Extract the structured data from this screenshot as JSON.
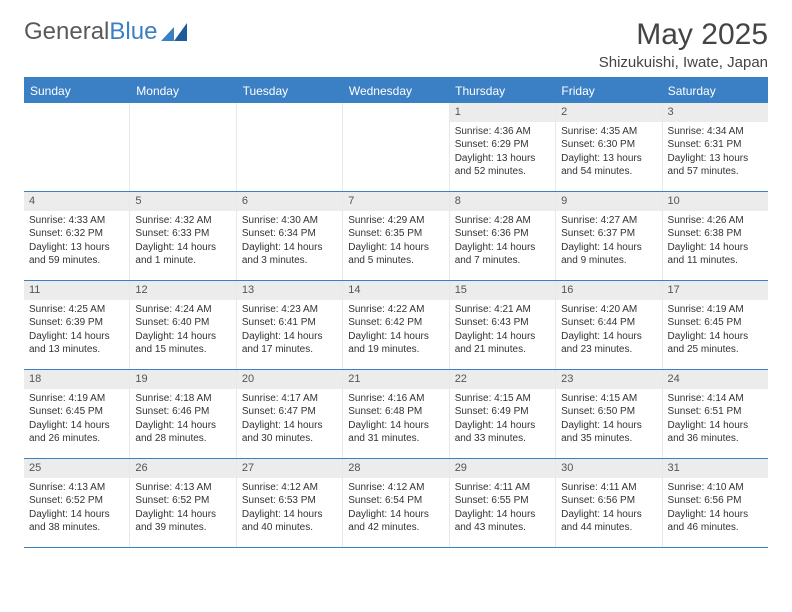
{
  "logo": {
    "text_gray": "General",
    "text_blue": "Blue"
  },
  "title": "May 2025",
  "location": "Shizukuishi, Iwate, Japan",
  "colors": {
    "header_bg": "#3b7fc4",
    "header_text": "#ffffff",
    "daynum_bg": "#ececec",
    "daynum_text": "#555555",
    "body_text": "#333333",
    "border": "#3b7fc4",
    "cell_border": "#e8e8e8"
  },
  "typography": {
    "title_fontsize": 30,
    "location_fontsize": 15,
    "header_fontsize": 12,
    "cell_fontsize": 10
  },
  "day_headers": [
    "Sunday",
    "Monday",
    "Tuesday",
    "Wednesday",
    "Thursday",
    "Friday",
    "Saturday"
  ],
  "weeks": [
    [
      {
        "n": "",
        "sunrise": "",
        "sunset": "",
        "daylight1": "",
        "daylight2": "",
        "empty": true
      },
      {
        "n": "",
        "sunrise": "",
        "sunset": "",
        "daylight1": "",
        "daylight2": "",
        "empty": true
      },
      {
        "n": "",
        "sunrise": "",
        "sunset": "",
        "daylight1": "",
        "daylight2": "",
        "empty": true
      },
      {
        "n": "",
        "sunrise": "",
        "sunset": "",
        "daylight1": "",
        "daylight2": "",
        "empty": true
      },
      {
        "n": "1",
        "sunrise": "Sunrise: 4:36 AM",
        "sunset": "Sunset: 6:29 PM",
        "daylight1": "Daylight: 13 hours",
        "daylight2": "and 52 minutes."
      },
      {
        "n": "2",
        "sunrise": "Sunrise: 4:35 AM",
        "sunset": "Sunset: 6:30 PM",
        "daylight1": "Daylight: 13 hours",
        "daylight2": "and 54 minutes."
      },
      {
        "n": "3",
        "sunrise": "Sunrise: 4:34 AM",
        "sunset": "Sunset: 6:31 PM",
        "daylight1": "Daylight: 13 hours",
        "daylight2": "and 57 minutes."
      }
    ],
    [
      {
        "n": "4",
        "sunrise": "Sunrise: 4:33 AM",
        "sunset": "Sunset: 6:32 PM",
        "daylight1": "Daylight: 13 hours",
        "daylight2": "and 59 minutes."
      },
      {
        "n": "5",
        "sunrise": "Sunrise: 4:32 AM",
        "sunset": "Sunset: 6:33 PM",
        "daylight1": "Daylight: 14 hours",
        "daylight2": "and 1 minute."
      },
      {
        "n": "6",
        "sunrise": "Sunrise: 4:30 AM",
        "sunset": "Sunset: 6:34 PM",
        "daylight1": "Daylight: 14 hours",
        "daylight2": "and 3 minutes."
      },
      {
        "n": "7",
        "sunrise": "Sunrise: 4:29 AM",
        "sunset": "Sunset: 6:35 PM",
        "daylight1": "Daylight: 14 hours",
        "daylight2": "and 5 minutes."
      },
      {
        "n": "8",
        "sunrise": "Sunrise: 4:28 AM",
        "sunset": "Sunset: 6:36 PM",
        "daylight1": "Daylight: 14 hours",
        "daylight2": "and 7 minutes."
      },
      {
        "n": "9",
        "sunrise": "Sunrise: 4:27 AM",
        "sunset": "Sunset: 6:37 PM",
        "daylight1": "Daylight: 14 hours",
        "daylight2": "and 9 minutes."
      },
      {
        "n": "10",
        "sunrise": "Sunrise: 4:26 AM",
        "sunset": "Sunset: 6:38 PM",
        "daylight1": "Daylight: 14 hours",
        "daylight2": "and 11 minutes."
      }
    ],
    [
      {
        "n": "11",
        "sunrise": "Sunrise: 4:25 AM",
        "sunset": "Sunset: 6:39 PM",
        "daylight1": "Daylight: 14 hours",
        "daylight2": "and 13 minutes."
      },
      {
        "n": "12",
        "sunrise": "Sunrise: 4:24 AM",
        "sunset": "Sunset: 6:40 PM",
        "daylight1": "Daylight: 14 hours",
        "daylight2": "and 15 minutes."
      },
      {
        "n": "13",
        "sunrise": "Sunrise: 4:23 AM",
        "sunset": "Sunset: 6:41 PM",
        "daylight1": "Daylight: 14 hours",
        "daylight2": "and 17 minutes."
      },
      {
        "n": "14",
        "sunrise": "Sunrise: 4:22 AM",
        "sunset": "Sunset: 6:42 PM",
        "daylight1": "Daylight: 14 hours",
        "daylight2": "and 19 minutes."
      },
      {
        "n": "15",
        "sunrise": "Sunrise: 4:21 AM",
        "sunset": "Sunset: 6:43 PM",
        "daylight1": "Daylight: 14 hours",
        "daylight2": "and 21 minutes."
      },
      {
        "n": "16",
        "sunrise": "Sunrise: 4:20 AM",
        "sunset": "Sunset: 6:44 PM",
        "daylight1": "Daylight: 14 hours",
        "daylight2": "and 23 minutes."
      },
      {
        "n": "17",
        "sunrise": "Sunrise: 4:19 AM",
        "sunset": "Sunset: 6:45 PM",
        "daylight1": "Daylight: 14 hours",
        "daylight2": "and 25 minutes."
      }
    ],
    [
      {
        "n": "18",
        "sunrise": "Sunrise: 4:19 AM",
        "sunset": "Sunset: 6:45 PM",
        "daylight1": "Daylight: 14 hours",
        "daylight2": "and 26 minutes."
      },
      {
        "n": "19",
        "sunrise": "Sunrise: 4:18 AM",
        "sunset": "Sunset: 6:46 PM",
        "daylight1": "Daylight: 14 hours",
        "daylight2": "and 28 minutes."
      },
      {
        "n": "20",
        "sunrise": "Sunrise: 4:17 AM",
        "sunset": "Sunset: 6:47 PM",
        "daylight1": "Daylight: 14 hours",
        "daylight2": "and 30 minutes."
      },
      {
        "n": "21",
        "sunrise": "Sunrise: 4:16 AM",
        "sunset": "Sunset: 6:48 PM",
        "daylight1": "Daylight: 14 hours",
        "daylight2": "and 31 minutes."
      },
      {
        "n": "22",
        "sunrise": "Sunrise: 4:15 AM",
        "sunset": "Sunset: 6:49 PM",
        "daylight1": "Daylight: 14 hours",
        "daylight2": "and 33 minutes."
      },
      {
        "n": "23",
        "sunrise": "Sunrise: 4:15 AM",
        "sunset": "Sunset: 6:50 PM",
        "daylight1": "Daylight: 14 hours",
        "daylight2": "and 35 minutes."
      },
      {
        "n": "24",
        "sunrise": "Sunrise: 4:14 AM",
        "sunset": "Sunset: 6:51 PM",
        "daylight1": "Daylight: 14 hours",
        "daylight2": "and 36 minutes."
      }
    ],
    [
      {
        "n": "25",
        "sunrise": "Sunrise: 4:13 AM",
        "sunset": "Sunset: 6:52 PM",
        "daylight1": "Daylight: 14 hours",
        "daylight2": "and 38 minutes."
      },
      {
        "n": "26",
        "sunrise": "Sunrise: 4:13 AM",
        "sunset": "Sunset: 6:52 PM",
        "daylight1": "Daylight: 14 hours",
        "daylight2": "and 39 minutes."
      },
      {
        "n": "27",
        "sunrise": "Sunrise: 4:12 AM",
        "sunset": "Sunset: 6:53 PM",
        "daylight1": "Daylight: 14 hours",
        "daylight2": "and 40 minutes."
      },
      {
        "n": "28",
        "sunrise": "Sunrise: 4:12 AM",
        "sunset": "Sunset: 6:54 PM",
        "daylight1": "Daylight: 14 hours",
        "daylight2": "and 42 minutes."
      },
      {
        "n": "29",
        "sunrise": "Sunrise: 4:11 AM",
        "sunset": "Sunset: 6:55 PM",
        "daylight1": "Daylight: 14 hours",
        "daylight2": "and 43 minutes."
      },
      {
        "n": "30",
        "sunrise": "Sunrise: 4:11 AM",
        "sunset": "Sunset: 6:56 PM",
        "daylight1": "Daylight: 14 hours",
        "daylight2": "and 44 minutes."
      },
      {
        "n": "31",
        "sunrise": "Sunrise: 4:10 AM",
        "sunset": "Sunset: 6:56 PM",
        "daylight1": "Daylight: 14 hours",
        "daylight2": "and 46 minutes."
      }
    ]
  ]
}
